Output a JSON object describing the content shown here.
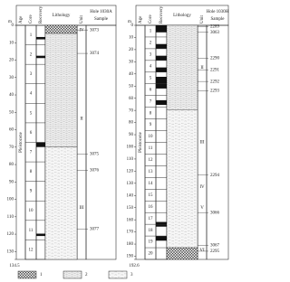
{
  "panels": [
    {
      "depth_unit": "m",
      "age": "Pleistocene",
      "headers": {
        "age": "Age",
        "core": "Core",
        "recovery": "Recovery",
        "lithology": "Lithology",
        "unit": "Unit",
        "hole": "Hole 1030A",
        "sample": "Sample"
      },
      "depth_ticks": [
        0,
        10,
        20,
        30,
        40,
        50,
        60,
        70,
        80,
        90,
        100,
        110,
        120,
        130
      ],
      "depth_bottom": 134.5,
      "cores": [
        "1",
        "2",
        "3",
        "4",
        "5",
        "6",
        "7",
        "8",
        "9",
        "10",
        "11",
        "12"
      ],
      "units": [
        "IV",
        "II",
        "III"
      ],
      "samples": [
        "3073",
        "3074",
        "3075",
        "3076",
        "3077"
      ]
    },
    {
      "depth_unit": "m",
      "age": "Pleistocene",
      "headers": {
        "age": "Age",
        "core": "Core",
        "recovery": "Recovery",
        "lithology": "Lithology",
        "unit": "Unit",
        "hole": "Hole 1030H",
        "sample": "Sample"
      },
      "depth_ticks": [
        0,
        10,
        20,
        30,
        40,
        50,
        60,
        70,
        80,
        90,
        100,
        110,
        120,
        130,
        140,
        150,
        160,
        170,
        180,
        190
      ],
      "depth_bottom": 192.6,
      "cores": [
        "1",
        "2",
        "3",
        "4",
        "5",
        "6",
        "7",
        "8",
        "9",
        "10",
        "11",
        "12",
        "13",
        "14",
        "15",
        "16",
        "17",
        "18",
        "19",
        "20"
      ],
      "units": [
        "II",
        "III",
        "IV",
        "V",
        "VI"
      ],
      "samples": [
        "2289",
        "3063",
        "2290",
        "2291",
        "2292",
        "2293",
        "2294",
        "3066",
        "3067",
        "2295"
      ]
    }
  ],
  "legend": [
    "1",
    "2",
    "3"
  ]
}
